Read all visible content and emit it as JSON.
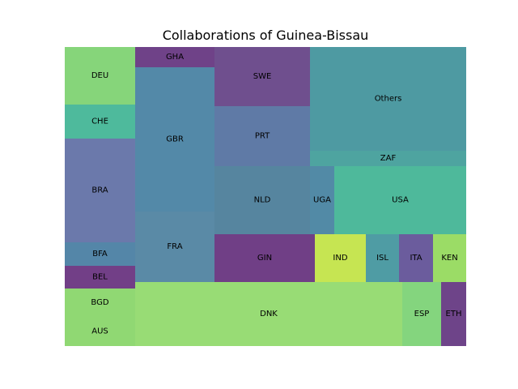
{
  "chart_data": {
    "type": "treemap",
    "title": "Collaborations of Guinea-Bissau",
    "cells": [
      {
        "label": "DEU",
        "value": 71,
        "color": "#86d57a"
      },
      {
        "label": "CHE",
        "value": 36,
        "color": "#4eba9c"
      },
      {
        "label": "BRA",
        "value": 111,
        "color": "#6b79ab"
      },
      {
        "label": "BFA",
        "value": 25,
        "color": "#5486a8"
      },
      {
        "label": "BEL",
        "value": 24,
        "color": "#723f87"
      },
      {
        "label": "BGD",
        "value": 31,
        "color": "#90d873"
      },
      {
        "label": "AUS",
        "value": 31,
        "color": "#90d873"
      },
      {
        "label": "GHA",
        "value": 24,
        "color": "#6f4288"
      },
      {
        "label": "GBR",
        "value": 177,
        "color": "#5389a8"
      },
      {
        "label": "FRA",
        "value": 84,
        "color": "#5a8aa6"
      },
      {
        "label": "SWE",
        "value": 87,
        "color": "#6f4f8e"
      },
      {
        "label": "PRT",
        "value": 88,
        "color": "#5f7aa6"
      },
      {
        "label": "NLD",
        "value": 100,
        "color": "#56859f"
      },
      {
        "label": "Others",
        "value": 247,
        "color": "#4e9aa2"
      },
      {
        "label": "ZAF",
        "value": 37,
        "color": "#4ea4a0"
      },
      {
        "label": "UGA",
        "value": 32,
        "color": "#528aa6"
      },
      {
        "label": "USA",
        "value": 163,
        "color": "#4eb99b"
      },
      {
        "label": "GIN",
        "value": 73,
        "color": "#703f86"
      },
      {
        "label": "IND",
        "value": 38,
        "color": "#c6e552"
      },
      {
        "label": "ISL",
        "value": 24,
        "color": "#4f9ca4"
      },
      {
        "label": "ITA",
        "value": 24,
        "color": "#6b5c9d"
      },
      {
        "label": "KEN",
        "value": 24,
        "color": "#9bdc66"
      },
      {
        "label": "DNK",
        "value": 262,
        "color": "#98dc75"
      },
      {
        "label": "ESP",
        "value": 34,
        "color": "#84d57e"
      },
      {
        "label": "ETH",
        "value": 22,
        "color": "#6e4489"
      }
    ]
  }
}
